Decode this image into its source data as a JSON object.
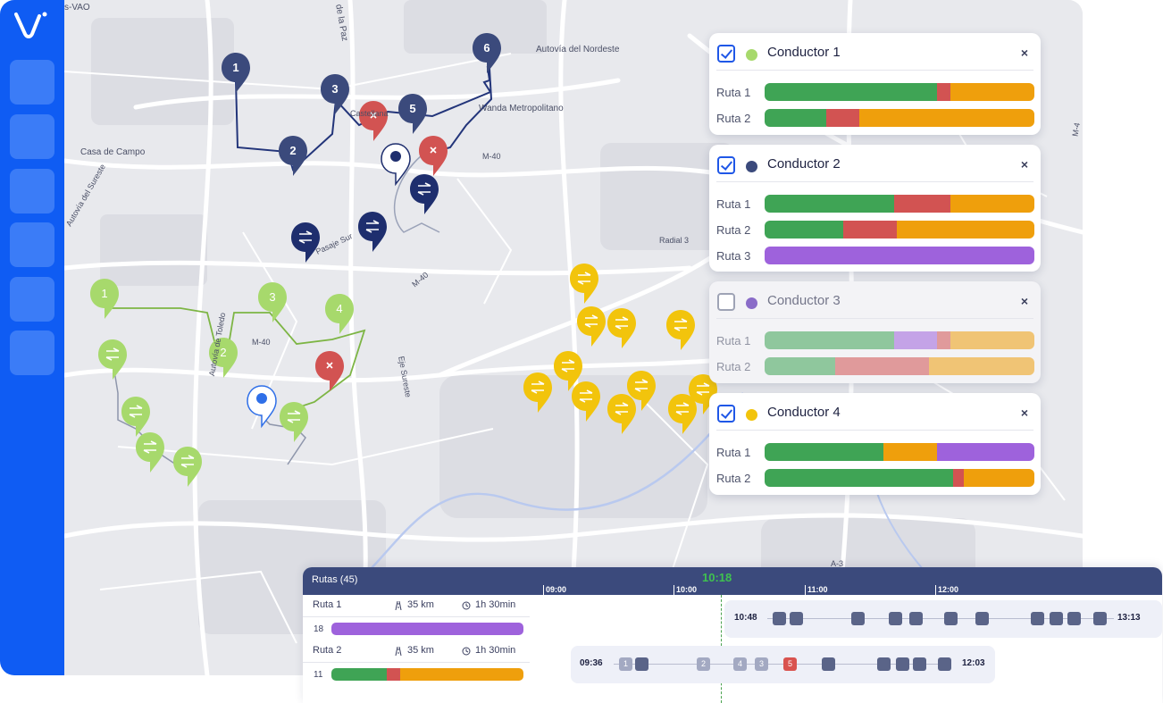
{
  "colors": {
    "sidebar": "#0f5cf3",
    "green": "#3fa455",
    "red": "#d25352",
    "orange": "#ef9f0c",
    "purple": "#9e62dc",
    "navy": "#3b4a7c",
    "pin_green": "#a7d96c",
    "pin_yellow": "#f2c40c",
    "pin_navy": "#3b4a7c",
    "pin_dark": "#1e2e6e"
  },
  "map": {
    "labels": {
      "vao": "s-VAO",
      "paz": "de la Paz",
      "autovia_nordeste": "Autovía del Nordeste",
      "casa_de_campo": "Casa de Campo",
      "wanda": "Wanda Metropolitano",
      "castellana": "Castellana",
      "m40_north": "M-40",
      "radial3": "Radial 3",
      "m40_center": "M-40",
      "m40_south": "M-40",
      "eje_sureste": "Eje Sureste",
      "autovia_sureste": "Autovía del Sureste",
      "autovia_toledo": "Autovía de Toledo",
      "pasaje": "Pasaje Sur",
      "m_east": "M-4",
      "a_east": "A-3"
    },
    "pins_navy": [
      "1",
      "2",
      "3",
      "5",
      "6"
    ],
    "pins_green": [
      "1",
      "2",
      "3",
      "4"
    ]
  },
  "conductors": [
    {
      "name": "Conductor 1",
      "checked": true,
      "color": "#a7d96c",
      "close": "×",
      "routes": [
        {
          "label": "Ruta 1",
          "segments": [
            [
              "#3fa455",
              64
            ],
            [
              "#d25352",
              5
            ],
            [
              "#ef9f0c",
              31
            ]
          ]
        },
        {
          "label": "Ruta 2",
          "segments": [
            [
              "#3fa455",
              23
            ],
            [
              "#d25352",
              12
            ],
            [
              "#ef9f0c",
              65
            ]
          ]
        }
      ]
    },
    {
      "name": "Conductor 2",
      "checked": true,
      "color": "#3b4a7c",
      "close": "×",
      "routes": [
        {
          "label": "Ruta 1",
          "segments": [
            [
              "#3fa455",
              48
            ],
            [
              "#d25352",
              21
            ],
            [
              "#ef9f0c",
              31
            ]
          ]
        },
        {
          "label": "Ruta 2",
          "segments": [
            [
              "#3fa455",
              29
            ],
            [
              "#d25352",
              20
            ],
            [
              "#ef9f0c",
              51
            ]
          ]
        },
        {
          "label": "Ruta 3",
          "segments": [
            [
              "#9e62dc",
              100
            ]
          ]
        }
      ]
    },
    {
      "name": "Conductor 3",
      "checked": false,
      "color": "#8a6cc8",
      "close": "×",
      "routes": [
        {
          "label": "Ruta 1",
          "segments": [
            [
              "#3fa455",
              48
            ],
            [
              "#9e62dc",
              16
            ],
            [
              "#d25352",
              5
            ],
            [
              "#ef9f0c",
              31
            ]
          ]
        },
        {
          "label": "Ruta 2",
          "segments": [
            [
              "#3fa455",
              26
            ],
            [
              "#d25352",
              35
            ],
            [
              "#ef9f0c",
              39
            ]
          ]
        }
      ]
    },
    {
      "name": "Conductor 4",
      "checked": true,
      "color": "#f2c40c",
      "close": "×",
      "routes": [
        {
          "label": "Ruta 1",
          "segments": [
            [
              "#3fa455",
              44
            ],
            [
              "#ef9f0c",
              20
            ],
            [
              "#9e62dc",
              36
            ]
          ]
        },
        {
          "label": "Ruta 2",
          "segments": [
            [
              "#3fa455",
              70
            ],
            [
              "#d25352",
              4
            ],
            [
              "#ef9f0c",
              26
            ]
          ]
        }
      ]
    }
  ],
  "timeline": {
    "title": "Rutas (45)",
    "now": "10:18",
    "ticks": [
      "09:00",
      "10:00",
      "11:00",
      "12:00"
    ],
    "routes": [
      {
        "name": "Ruta 1",
        "distance": "35 km",
        "duration": "1h 30min",
        "count": "18",
        "segments": [
          [
            "#9e62dc",
            100
          ]
        ]
      },
      {
        "name": "Ruta 2",
        "distance": "35 km",
        "duration": "1h 30min",
        "count": "11",
        "segments": [
          [
            "#3fa455",
            29
          ],
          [
            "#d25352",
            7
          ],
          [
            "#ef9f0c",
            64
          ]
        ]
      }
    ],
    "lanes": [
      {
        "start": "10:48",
        "end": "13:13"
      },
      {
        "start": "09:36",
        "end": "12:03",
        "stop_labels": [
          "1",
          "2",
          "4",
          "3",
          "5"
        ]
      }
    ]
  }
}
